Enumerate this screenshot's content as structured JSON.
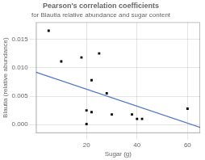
{
  "chart_data": {
    "type": "scatter",
    "title": "Pearson's correlation coefficients",
    "subtitle": "for Blautia relative abundance and sugar content",
    "x_label": "Sugar (g)",
    "y_label": "Blautia (relative abundance)",
    "series": [
      {
        "type": "scatter",
        "color": "#000000",
        "marker": "square",
        "x": [
          5,
          10,
          18,
          20,
          20,
          22,
          22,
          25,
          28,
          30,
          38,
          40,
          42,
          60
        ],
        "values": [
          0.0165,
          0.0111,
          0.0118,
          0.0025,
          0.0001,
          0.0078,
          0.0022,
          0.0125,
          0.0055,
          0.0018,
          0.0018,
          0.001,
          0.001,
          0.0028
        ]
      },
      {
        "type": "line",
        "color": "#5577cc",
        "line_style": "solid",
        "x": [
          0,
          65
        ],
        "values": [
          0.0092,
          -0.0005
        ]
      }
    ],
    "xlim": [
      0,
      65
    ],
    "ylim": [
      -0.0015,
      0.018
    ],
    "xticks": [
      20,
      40,
      60
    ],
    "yticks": [
      {
        "value": 0,
        "label": "0.000"
      },
      {
        "value": 0.005,
        "label": "0.005"
      },
      {
        "value": 0.01,
        "label": "0.010"
      },
      {
        "value": 0.015,
        "label": "0.015"
      }
    ],
    "grid": true
  }
}
